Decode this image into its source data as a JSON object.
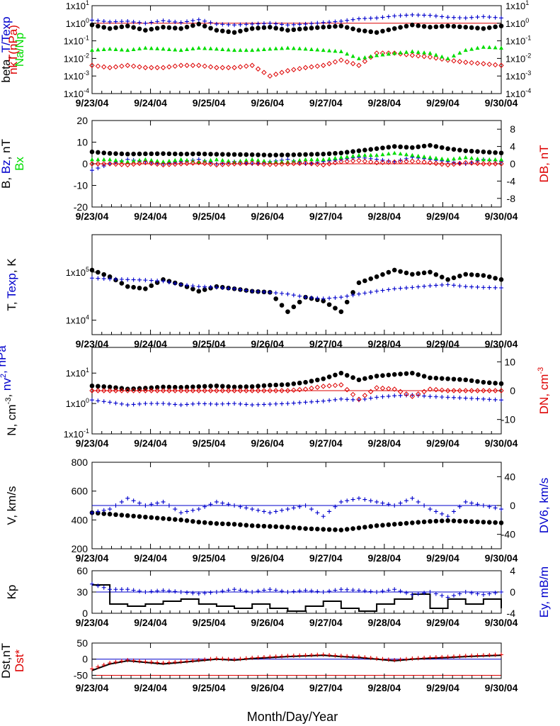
{
  "figure": {
    "xlabel": "Month/Day/Year"
  },
  "dates": [
    "9/23/04",
    "9/24/04",
    "9/25/04",
    "9/26/04",
    "9/27/04",
    "9/28/04",
    "9/29/04",
    "9/30/04"
  ],
  "colors": {
    "black": "#000000",
    "blue": "#0000cc",
    "red": "#dd0000",
    "green": "#00dd00"
  },
  "chart_data": [
    {
      "type": "scatter",
      "id": "p1",
      "scale": "log",
      "ylim": [
        0.0001,
        10
      ],
      "y2lim": [
        0.0001,
        10
      ],
      "yticks": [
        "1x10-4",
        "1x10-3",
        "1x10-2",
        "1x10-1",
        "1x10⁰",
        "1x10¹"
      ],
      "yticks_display": [
        [
          "1x10",
          "-4"
        ],
        [
          "1x10",
          "-3"
        ],
        [
          "1x10",
          "-2"
        ],
        [
          "1x10",
          "-1"
        ],
        [
          "1x10",
          "0"
        ],
        [
          "1x10",
          "1"
        ]
      ],
      "ylabel": [
        {
          "text": "beta, ",
          "color": "black"
        },
        {
          "text": "T/Texp",
          "color": "blue"
        }
      ],
      "ylabel2": [
        {
          "text": "nkT(nPa)",
          "color": "red"
        }
      ],
      "ylabel3": [
        {
          "text": "Na/Np",
          "color": "green"
        }
      ],
      "reference_line": {
        "y": 1,
        "color": "red"
      },
      "series": [
        {
          "label": "beta",
          "color": "black",
          "marker": "dot",
          "y": [
            0.8,
            0.5,
            0.7,
            0.4,
            0.6,
            0.5,
            0.9,
            0.4,
            0.3,
            0.5,
            0.6,
            0.4,
            0.5,
            0.6,
            0.7,
            0.4,
            0.3,
            0.5,
            0.8,
            0.6,
            0.7,
            0.6,
            0.5,
            0.7
          ]
        },
        {
          "label": "T/Texp",
          "color": "blue",
          "marker": "plus",
          "y": [
            1.5,
            1.2,
            1.3,
            1.0,
            1.4,
            1.1,
            1.6,
            0.9,
            0.8,
            0.9,
            1.0,
            0.8,
            0.9,
            1.1,
            1.3,
            1.8,
            2.0,
            2.6,
            3.0,
            2.8,
            2.2,
            2.0,
            2.4,
            2.0
          ]
        },
        {
          "label": "nkT",
          "color": "red",
          "marker": "diamond",
          "y": [
            0.004,
            0.003,
            0.004,
            0.003,
            0.003,
            0.004,
            0.004,
            0.003,
            0.003,
            0.004,
            0.001,
            0.002,
            0.003,
            0.004,
            0.008,
            0.004,
            0.02,
            0.02,
            0.015,
            0.012,
            0.008,
            0.006,
            0.005,
            0.004
          ]
        },
        {
          "label": "Na/Np",
          "color": "green",
          "marker": "tri",
          "y": [
            0.03,
            0.035,
            0.03,
            0.04,
            0.035,
            0.03,
            0.04,
            0.035,
            0.03,
            0.03,
            0.035,
            0.04,
            0.035,
            0.03,
            0.025,
            0.01,
            0.015,
            0.02,
            0.025,
            0.02,
            0.01,
            0.03,
            0.045,
            0.04
          ]
        }
      ]
    },
    {
      "type": "scatter",
      "id": "p2",
      "scale": "linear",
      "ylim": [
        -20,
        20
      ],
      "yticks": [
        -20,
        -10,
        0,
        10,
        20
      ],
      "y2lim": [
        -10,
        10
      ],
      "y2ticks": [
        -8,
        -4,
        0,
        4,
        8
      ],
      "ylabel": [
        {
          "text": "B, ",
          "color": "black"
        },
        {
          "text": "Bz",
          "color": "blue"
        },
        {
          "text": ", nT",
          "color": "black"
        }
      ],
      "ylabel3": [
        {
          "text": "Bx",
          "color": "green"
        }
      ],
      "ylabel2": [
        {
          "text": "DB, nT",
          "color": "red"
        }
      ],
      "reference_line": {
        "y": 0,
        "color": "red"
      },
      "series": [
        {
          "label": "B",
          "color": "black",
          "marker": "dot",
          "y": [
            5.5,
            4.8,
            4.5,
            4.6,
            4.7,
            4.5,
            4.6,
            4.4,
            4.3,
            4.2,
            4.0,
            4.1,
            4.3,
            4.5,
            5.0,
            6.0,
            7.0,
            8.0,
            7.5,
            8.5,
            7.0,
            6.0,
            5.5,
            5.0
          ]
        },
        {
          "label": "Bz",
          "color": "blue",
          "marker": "plus",
          "y": [
            -3,
            0,
            2,
            1,
            0,
            1,
            2,
            0,
            1,
            0,
            1,
            2,
            0,
            1,
            2,
            3,
            2,
            1,
            3,
            2,
            1,
            0,
            2,
            1
          ]
        },
        {
          "label": "Bx",
          "color": "green",
          "marker": "tri",
          "y": [
            2,
            2,
            1,
            2,
            1,
            2,
            1,
            2,
            1,
            2,
            1,
            1,
            2,
            2,
            3,
            4,
            4,
            5,
            4,
            3,
            2,
            3,
            2,
            2
          ]
        },
        {
          "label": "DB",
          "color": "red",
          "marker": "diamond",
          "y": [
            0,
            0,
            -0.5,
            0.5,
            -0.5,
            0,
            0.5,
            -0.5,
            0,
            0.3,
            -0.3,
            0,
            0.3,
            -0.5,
            1,
            1.5,
            0.5,
            0.8,
            1.2,
            0.5,
            -0.5,
            0.5,
            0,
            0
          ]
        }
      ]
    },
    {
      "type": "scatter",
      "id": "p3",
      "scale": "log",
      "ylim": [
        5000,
        600000
      ],
      "yticks": [
        "1x10⁴",
        "1x10⁵"
      ],
      "yticks_display": [
        [
          "1x10",
          "4"
        ],
        [
          "1x10",
          "5"
        ]
      ],
      "ylabel": [
        {
          "text": "T, ",
          "color": "black"
        },
        {
          "text": "Texp",
          "color": "blue"
        },
        {
          "text": ", K",
          "color": "black"
        }
      ],
      "series": [
        {
          "label": "T",
          "color": "black",
          "marker": "dot",
          "y": [
            110000,
            80000,
            50000,
            45000,
            70000,
            55000,
            40000,
            50000,
            45000,
            40000,
            38000,
            15000,
            30000,
            25000,
            15000,
            60000,
            80000,
            110000,
            90000,
            100000,
            70000,
            90000,
            85000,
            70000
          ]
        },
        {
          "label": "Texp",
          "color": "blue",
          "marker": "plus",
          "y": [
            75000,
            72000,
            70000,
            68000,
            65000,
            55000,
            50000,
            48000,
            45000,
            40000,
            38000,
            35000,
            30000,
            28000,
            30000,
            35000,
            40000,
            45000,
            48000,
            52000,
            55000,
            50000,
            48000,
            47000
          ]
        }
      ]
    },
    {
      "type": "scatter",
      "id": "p4",
      "scale": "log",
      "ylim": [
        0.1,
        70
      ],
      "yticks": [
        "1x10-1",
        "1x10⁰",
        "1x10¹"
      ],
      "yticks_display": [
        [
          "1x10",
          "-1"
        ],
        [
          "1x10",
          "0"
        ],
        [
          "1x10",
          "1"
        ]
      ],
      "y2lim": [
        -15,
        15
      ],
      "y2ticks": [
        -10,
        0,
        10
      ],
      "ylabel": [
        {
          "text": "N, cm",
          "color": "black",
          "sup": "-3"
        },
        {
          "text": ", ",
          "color": "black"
        },
        {
          "text": "nv",
          "color": "blue",
          "sup": "2"
        },
        {
          "text": ", nPa",
          "color": "blue"
        }
      ],
      "ylabel2": [
        {
          "text": "DN, cm",
          "color": "red",
          "sup": "-3"
        }
      ],
      "reference_line": {
        "y2": 0,
        "color": "red"
      },
      "series": [
        {
          "label": "N",
          "color": "black",
          "marker": "dot",
          "y": [
            3.8,
            3.5,
            3.0,
            3.2,
            3.5,
            3.4,
            3.6,
            3.8,
            3.5,
            3.6,
            4.0,
            4.2,
            5.0,
            6.5,
            10.0,
            6.0,
            8.0,
            9.0,
            10.0,
            7.0,
            6.5,
            6.0,
            5.0,
            4.5
          ]
        },
        {
          "label": "nv2",
          "color": "blue",
          "marker": "plus",
          "y": [
            1.3,
            1.1,
            0.9,
            1.0,
            1.0,
            0.9,
            1.0,
            0.95,
            1.0,
            0.9,
            0.95,
            1.0,
            1.1,
            1.2,
            1.4,
            1.3,
            1.6,
            1.8,
            1.9,
            1.7,
            1.6,
            1.5,
            1.4,
            1.3
          ]
        },
        {
          "label": "DN",
          "color": "red",
          "marker": "diamond",
          "y2": [
            0,
            0,
            0,
            0,
            0,
            0,
            0,
            0,
            0,
            0,
            0,
            0,
            0.5,
            1.5,
            2,
            -3,
            1,
            0.5,
            -2,
            0.5,
            0,
            0,
            0,
            0
          ]
        }
      ]
    },
    {
      "type": "scatter",
      "id": "p5",
      "scale": "linear",
      "ylim": [
        200,
        800
      ],
      "yticks": [
        200,
        400,
        600,
        800
      ],
      "y2lim": [
        -60,
        60
      ],
      "y2ticks": [
        -40,
        0,
        40
      ],
      "ylabel": [
        {
          "text": "V, km/s",
          "color": "black"
        }
      ],
      "ylabel2": [
        {
          "text": "DV6, km/s",
          "color": "blue"
        }
      ],
      "reference_line": {
        "y2": 0,
        "color": "blue"
      },
      "series": [
        {
          "label": "V",
          "color": "black",
          "marker": "dot",
          "y": [
            450,
            440,
            430,
            420,
            410,
            400,
            385,
            375,
            370,
            360,
            355,
            350,
            340,
            335,
            330,
            345,
            360,
            370,
            380,
            390,
            395,
            390,
            385,
            380
          ]
        },
        {
          "label": "DV6",
          "color": "blue",
          "marker": "plus",
          "y2": [
            -10,
            -5,
            10,
            0,
            5,
            -10,
            -5,
            5,
            0,
            -5,
            -10,
            -5,
            0,
            -15,
            5,
            10,
            5,
            0,
            10,
            -5,
            -15,
            5,
            0,
            -5
          ]
        }
      ]
    },
    {
      "type": "line",
      "id": "p6",
      "scale": "linear",
      "ylim": [
        0,
        60
      ],
      "yticks": [
        0,
        30,
        60
      ],
      "y2lim": [
        -4,
        4
      ],
      "y2ticks": [
        -4,
        0,
        4
      ],
      "ylabel": [
        {
          "text": "Kp",
          "color": "black"
        }
      ],
      "ylabel2": [
        {
          "text": "Ey,  mB/m",
          "color": "blue"
        }
      ],
      "reference_line": {
        "y2": 0,
        "color": "blue"
      },
      "series": [
        {
          "label": "Kp",
          "color": "black",
          "marker": "step",
          "y": [
            40,
            13,
            10,
            13,
            17,
            20,
            13,
            10,
            7,
            13,
            7,
            3,
            10,
            17,
            7,
            3,
            13,
            20,
            27,
            7,
            20,
            13,
            20,
            7
          ]
        },
        {
          "label": "Ey",
          "color": "blue",
          "marker": "plus",
          "y2": [
            1.5,
            0.5,
            0.5,
            0,
            0.3,
            0,
            -0.3,
            0,
            0.5,
            0,
            0.5,
            0,
            0.3,
            0,
            0.5,
            0.3,
            0,
            0.5,
            -0.5,
            0,
            -1,
            0,
            -0.5,
            0
          ]
        }
      ]
    },
    {
      "type": "line",
      "id": "p7",
      "scale": "linear",
      "ylim": [
        -60,
        50
      ],
      "yticks": [
        -50,
        0,
        50
      ],
      "ylabel": [
        {
          "text": "Dst,nT",
          "color": "black"
        }
      ],
      "ylabel3": [
        {
          "text": "Dst*",
          "color": "red"
        }
      ],
      "reference_line": {
        "y": 0,
        "color": "blue"
      },
      "reference_line_2": {
        "y": -50,
        "color": "red"
      },
      "series": [
        {
          "label": "Dst",
          "color": "black",
          "marker": "line",
          "y": [
            -35,
            -15,
            -5,
            -10,
            -15,
            -10,
            -5,
            0,
            -3,
            2,
            5,
            8,
            10,
            12,
            8,
            5,
            0,
            -5,
            0,
            3,
            5,
            8,
            10,
            12
          ]
        },
        {
          "label": "Dst*",
          "color": "red",
          "marker": "plus",
          "y": [
            -30,
            -12,
            -3,
            -8,
            -12,
            -8,
            -3,
            2,
            -1,
            4,
            7,
            10,
            12,
            14,
            10,
            7,
            2,
            -3,
            2,
            5,
            7,
            10,
            12,
            14
          ]
        }
      ]
    }
  ]
}
